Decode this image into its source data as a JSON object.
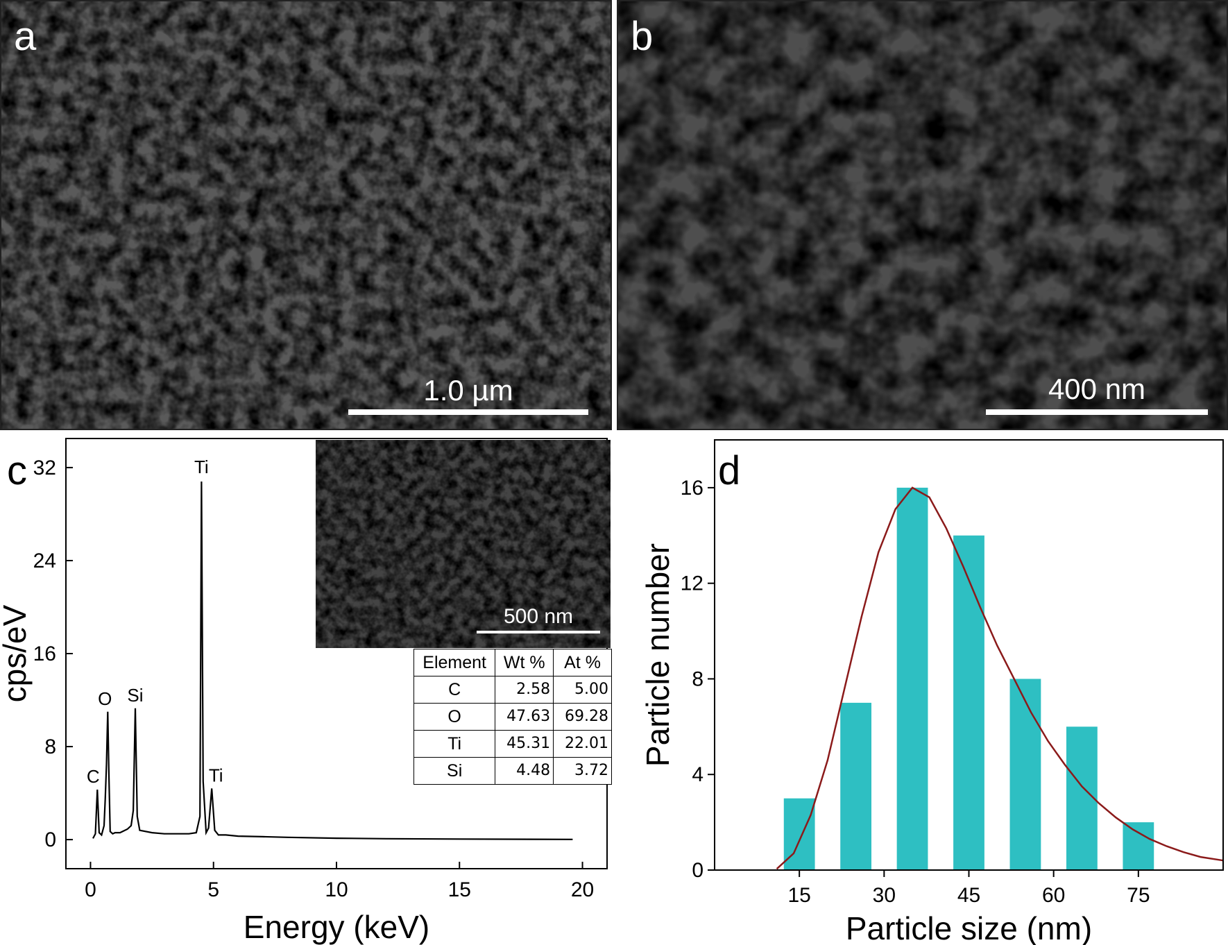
{
  "panels": {
    "a": {
      "label": "a",
      "scale": "1.0 µm"
    },
    "b": {
      "label": "b",
      "scale": "400 nm"
    },
    "c": {
      "label": "c",
      "inset_scale": "500 nm"
    },
    "d": {
      "label": "d"
    }
  },
  "colors": {
    "bar": "#2ebfc2",
    "fit": "#8b1a1a",
    "line": "#000000"
  },
  "chart_data": [
    {
      "type": "line",
      "panel": "c",
      "xlabel": "Energy (keV)",
      "ylabel": "cps/eV",
      "xlim": [
        -1,
        21
      ],
      "ylim": [
        -2.5,
        34.5
      ],
      "xticks": [
        0,
        5,
        10,
        15,
        20
      ],
      "yticks": [
        0,
        8,
        16,
        24,
        32
      ],
      "xtick_labels": [
        "0",
        "5",
        "10",
        "15",
        "20"
      ],
      "ytick_labels": [
        "0",
        "8",
        "16",
        "24",
        "32"
      ],
      "series": [
        {
          "x": [
            0.1,
            0.2,
            0.277,
            0.35,
            0.45,
            0.55,
            0.6,
            0.65,
            0.7,
            0.75,
            0.8,
            0.9,
            1.0,
            1.2,
            1.5,
            1.65,
            1.74,
            1.82,
            1.9,
            2.0,
            2.5,
            3.0,
            3.5,
            4.0,
            4.3,
            4.45,
            4.51,
            4.58,
            4.7,
            4.8,
            4.93,
            5.05,
            5.2,
            5.5,
            6,
            7,
            8,
            10,
            12,
            15,
            19.6
          ],
          "y": [
            0.1,
            0.5,
            4.3,
            0.6,
            0.4,
            1.2,
            3.5,
            6.5,
            11.0,
            5.5,
            0.7,
            0.5,
            0.6,
            0.6,
            0.9,
            1.2,
            2.5,
            11.3,
            2.0,
            0.8,
            0.6,
            0.5,
            0.5,
            0.5,
            0.6,
            2.0,
            30.8,
            5.0,
            0.6,
            1.0,
            4.4,
            0.8,
            0.4,
            0.4,
            0.3,
            0.25,
            0.2,
            0.12,
            0.08,
            0.05,
            0.02
          ]
        }
      ],
      "annotations": [
        {
          "text": "Ti",
          "x": 4.51,
          "y": 30.8
        },
        {
          "text": "O",
          "x": 0.7,
          "y": 11.0
        },
        {
          "text": "Si",
          "x": 1.82,
          "y": 11.3
        },
        {
          "text": "C",
          "x": 0.277,
          "y": 4.3
        },
        {
          "text": "Ti",
          "x": 4.93,
          "y": 4.4
        }
      ],
      "table": {
        "headers": [
          "Element",
          "Wt %",
          "At %"
        ],
        "rows": [
          [
            "C",
            "2.58",
            "5.00"
          ],
          [
            "O",
            "47.63",
            "69.28"
          ],
          [
            "Ti",
            "45.31",
            "22.01"
          ],
          [
            "Si",
            "4.48",
            "3.72"
          ]
        ]
      }
    },
    {
      "type": "bar",
      "panel": "d",
      "xlabel": "Particle size (nm)",
      "ylabel": "Particle number",
      "xlim": [
        0,
        90
      ],
      "ylim": [
        0,
        18
      ],
      "xticks": [
        15,
        30,
        45,
        60,
        75
      ],
      "yticks": [
        0,
        4,
        8,
        12,
        16
      ],
      "xtick_labels": [
        "15",
        "30",
        "45",
        "60",
        "75"
      ],
      "ytick_labels": [
        "0",
        "4",
        "8",
        "12",
        "16"
      ],
      "categories": [
        15,
        25,
        35,
        45,
        55,
        65,
        75
      ],
      "values": [
        3,
        7,
        16,
        14,
        8,
        6,
        2
      ],
      "bar_width": 5.5,
      "fit": {
        "x": [
          11,
          14,
          17,
          20,
          23,
          26,
          29,
          32,
          35,
          38,
          41,
          44,
          47,
          50,
          53,
          56,
          59,
          62,
          65,
          68,
          71,
          74,
          77,
          80,
          83,
          86,
          90
        ],
        "y": [
          0.05,
          0.7,
          2.3,
          4.6,
          7.6,
          10.6,
          13.3,
          15.1,
          16.0,
          15.6,
          14.3,
          12.7,
          11.0,
          9.4,
          8.0,
          6.6,
          5.4,
          4.4,
          3.5,
          2.8,
          2.2,
          1.7,
          1.3,
          1.0,
          0.75,
          0.55,
          0.4
        ]
      }
    }
  ]
}
